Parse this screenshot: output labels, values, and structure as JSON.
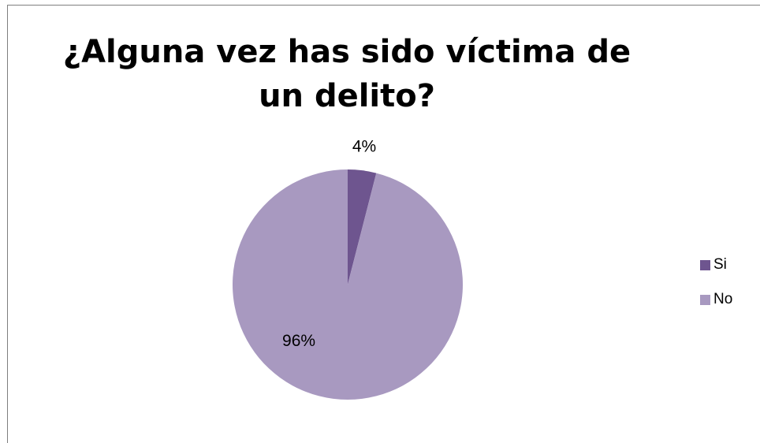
{
  "chart_data": {
    "type": "pie",
    "title": "¿Alguna vez has sido víctima de un delito?",
    "categories": [
      "Si",
      "No"
    ],
    "values": [
      4,
      96
    ],
    "data_labels": [
      "4%",
      "96%"
    ],
    "colors": [
      "#6e558f",
      "#a899c0"
    ],
    "legend_position": "right",
    "start_angle_deg": 0
  }
}
